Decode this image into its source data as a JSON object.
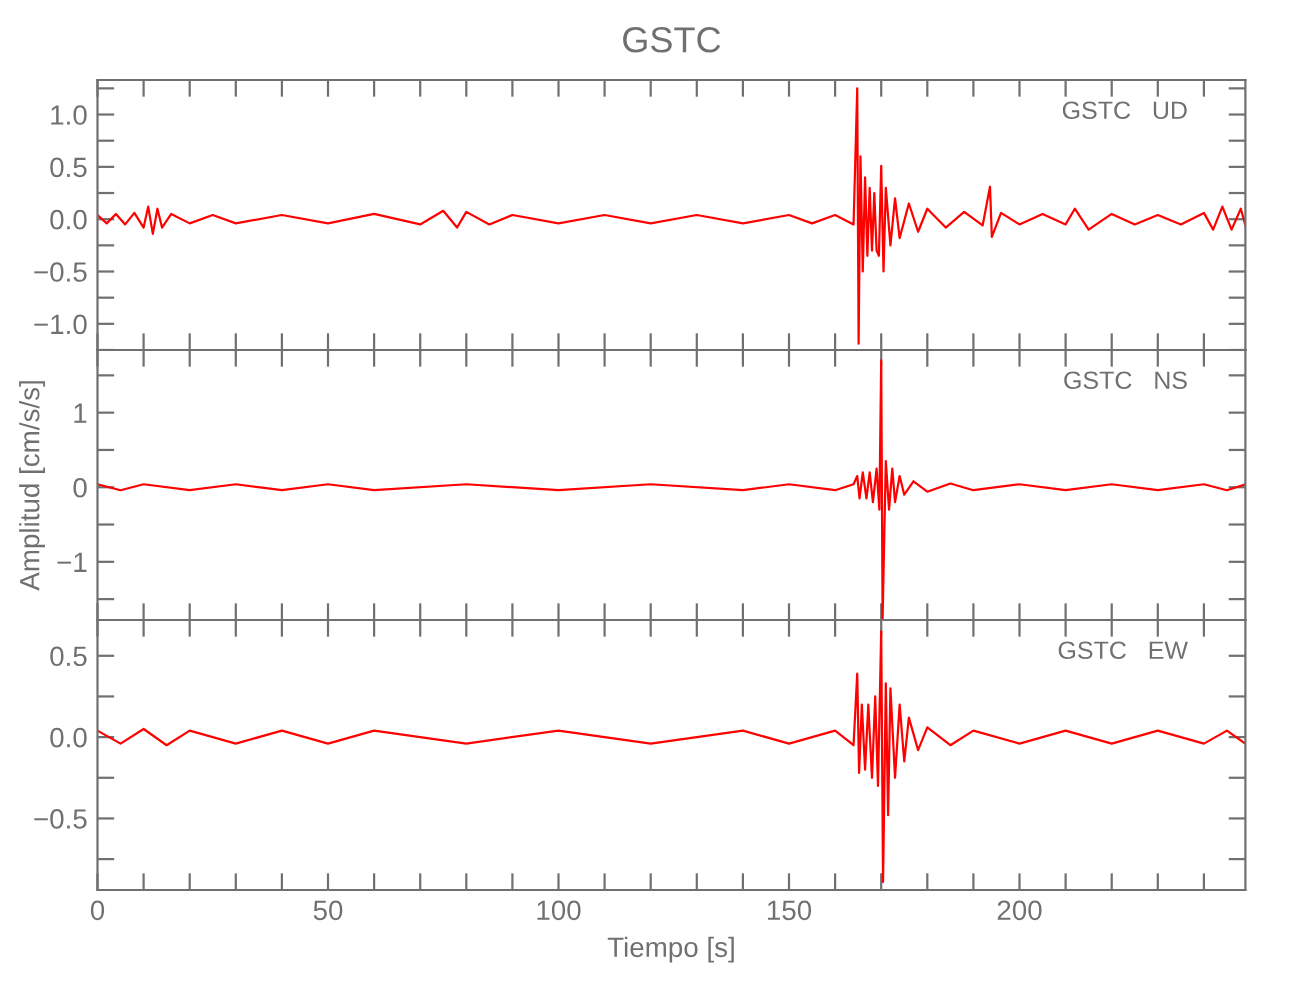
{
  "chart_data": [
    {
      "type": "line",
      "title": "GSTC",
      "annotations": [
        "GSTC   UD"
      ],
      "tick_labels": "y",
      "grid": false,
      "legend": false,
      "xlim": [
        0,
        249
      ],
      "xticks": [
        0,
        {
          "value": 10,
          "label": null
        },
        {
          "value": 20,
          "label": null
        },
        {
          "value": 30,
          "label": null
        },
        {
          "value": 40,
          "label": null
        },
        50,
        {
          "value": 60,
          "label": null
        },
        {
          "value": 70,
          "label": null
        },
        {
          "value": 80,
          "label": null
        },
        {
          "value": 90,
          "label": null
        },
        100,
        {
          "value": 110,
          "label": null
        },
        {
          "value": 120,
          "label": null
        },
        {
          "value": 130,
          "label": null
        },
        {
          "value": 140,
          "label": null
        },
        150,
        {
          "value": 160,
          "label": null
        },
        {
          "value": 170,
          "label": null
        },
        {
          "value": 180,
          "label": null
        },
        {
          "value": 190,
          "label": null
        },
        200,
        {
          "value": 210,
          "label": null
        },
        {
          "value": 220,
          "label": null
        },
        {
          "value": 230,
          "label": null
        },
        {
          "value": 240,
          "label": null
        }
      ],
      "ylim": [
        -1.25,
        1.33
      ],
      "yticks": [
        {
          "value": -1.25,
          "label": null
        },
        {
          "value": -1,
          "label": "−1.0"
        },
        {
          "value": -0.75,
          "label": null
        },
        {
          "value": -0.5,
          "label": "−0.5"
        },
        {
          "value": -0.25,
          "label": null
        },
        {
          "value": 0,
          "label": "0.0"
        },
        {
          "value": 0.25,
          "label": null
        },
        {
          "value": 0.5,
          "label": "0.5"
        },
        {
          "value": 0.75,
          "label": null
        },
        {
          "value": 1,
          "label": "1.0"
        },
        {
          "value": 1.25,
          "label": null
        }
      ],
      "series": [
        {
          "color": "#ff0000",
          "x": [
            0,
            2,
            4,
            6,
            8,
            10,
            11,
            12,
            13,
            14,
            16,
            20,
            25,
            30,
            40,
            50,
            60,
            70,
            75,
            78,
            80,
            85,
            90,
            100,
            110,
            120,
            130,
            140,
            150,
            155,
            160,
            164,
            164.8,
            165.1,
            165.5,
            166,
            166.5,
            167,
            167.5,
            168,
            168.5,
            169,
            169.5,
            170,
            170.5,
            171,
            172,
            173,
            174,
            176,
            178,
            180,
            184,
            188,
            192,
            193.6,
            194,
            196,
            200,
            205,
            210,
            212,
            215,
            220,
            225,
            230,
            235,
            240,
            242,
            244,
            246,
            248,
            249
          ],
          "values": [
            0.04,
            -0.04,
            0.05,
            -0.05,
            0.06,
            -0.08,
            0.12,
            -0.14,
            0.1,
            -0.08,
            0.05,
            -0.04,
            0.04,
            -0.04,
            0.04,
            -0.04,
            0.05,
            -0.05,
            0.08,
            -0.08,
            0.07,
            -0.05,
            0.04,
            -0.04,
            0.04,
            -0.04,
            0.04,
            -0.04,
            0.04,
            -0.04,
            0.04,
            -0.05,
            1.25,
            -1.19,
            0.6,
            -0.5,
            0.4,
            -0.35,
            0.3,
            -0.3,
            0.25,
            -0.3,
            -0.35,
            0.51,
            -0.5,
            0.3,
            -0.25,
            0.2,
            -0.18,
            0.15,
            -0.12,
            0.1,
            -0.08,
            0.07,
            -0.06,
            0.31,
            -0.17,
            0.06,
            -0.05,
            0.05,
            -0.05,
            0.1,
            -0.1,
            0.05,
            -0.05,
            0.04,
            -0.05,
            0.06,
            -0.1,
            0.12,
            -0.1,
            0.1,
            -0.06
          ]
        }
      ]
    },
    {
      "type": "line",
      "ylabel": "Amplitud [cm/s/s]",
      "annotations": [
        "GSTC   NS"
      ],
      "tick_labels": "y",
      "grid": false,
      "legend": false,
      "xlim": [
        0,
        249
      ],
      "xticks": [
        0,
        {
          "value": 10,
          "label": null
        },
        {
          "value": 20,
          "label": null
        },
        {
          "value": 30,
          "label": null
        },
        {
          "value": 40,
          "label": null
        },
        50,
        {
          "value": 60,
          "label": null
        },
        {
          "value": 70,
          "label": null
        },
        {
          "value": 80,
          "label": null
        },
        {
          "value": 90,
          "label": null
        },
        100,
        {
          "value": 110,
          "label": null
        },
        {
          "value": 120,
          "label": null
        },
        {
          "value": 130,
          "label": null
        },
        {
          "value": 140,
          "label": null
        },
        150,
        {
          "value": 160,
          "label": null
        },
        {
          "value": 170,
          "label": null
        },
        {
          "value": 180,
          "label": null
        },
        {
          "value": 190,
          "label": null
        },
        200,
        {
          "value": 210,
          "label": null
        },
        {
          "value": 220,
          "label": null
        },
        {
          "value": 230,
          "label": null
        },
        {
          "value": 240,
          "label": null
        }
      ],
      "ylim": [
        -1.78,
        1.84
      ],
      "yticks": [
        {
          "value": -1.5,
          "label": null
        },
        {
          "value": -1,
          "label": "−1"
        },
        {
          "value": -0.5,
          "label": null
        },
        0,
        {
          "value": 0.5,
          "label": null
        },
        1,
        {
          "value": 1.5,
          "label": null
        }
      ],
      "series": [
        {
          "color": "#ff0000",
          "x": [
            0,
            5,
            10,
            20,
            30,
            40,
            50,
            60,
            80,
            100,
            120,
            140,
            150,
            160,
            164,
            164.8,
            165.3,
            166,
            166.8,
            167.5,
            168.2,
            169,
            169.6,
            170,
            170.3,
            171,
            171.7,
            172.4,
            173,
            174,
            175,
            177,
            180,
            185,
            190,
            200,
            210,
            220,
            230,
            240,
            245,
            249
          ],
          "values": [
            0.04,
            -0.04,
            0.04,
            -0.04,
            0.04,
            -0.04,
            0.04,
            -0.04,
            0.04,
            -0.04,
            0.04,
            -0.04,
            0.04,
            -0.04,
            0.04,
            0.15,
            -0.15,
            0.2,
            -0.15,
            0.2,
            -0.2,
            0.25,
            -0.3,
            1.7,
            -1.76,
            0.35,
            -0.3,
            0.25,
            -0.2,
            0.15,
            -0.1,
            0.08,
            -0.06,
            0.05,
            -0.04,
            0.04,
            -0.04,
            0.04,
            -0.04,
            0.04,
            -0.04,
            0.04
          ]
        }
      ]
    },
    {
      "type": "line",
      "xlabel": "Tiempo [s]",
      "annotations": [
        "GSTC   EW"
      ],
      "grid": false,
      "legend": false,
      "xlim": [
        0,
        249
      ],
      "xticks": [
        0,
        {
          "value": 10,
          "label": null
        },
        {
          "value": 20,
          "label": null
        },
        {
          "value": 30,
          "label": null
        },
        {
          "value": 40,
          "label": null
        },
        50,
        {
          "value": 60,
          "label": null
        },
        {
          "value": 70,
          "label": null
        },
        {
          "value": 80,
          "label": null
        },
        {
          "value": 90,
          "label": null
        },
        100,
        {
          "value": 110,
          "label": null
        },
        {
          "value": 120,
          "label": null
        },
        {
          "value": 130,
          "label": null
        },
        {
          "value": 140,
          "label": null
        },
        150,
        {
          "value": 160,
          "label": null
        },
        {
          "value": 170,
          "label": null
        },
        {
          "value": 180,
          "label": null
        },
        {
          "value": 190,
          "label": null
        },
        200,
        {
          "value": 210,
          "label": null
        },
        {
          "value": 220,
          "label": null
        },
        {
          "value": 230,
          "label": null
        },
        {
          "value": 240,
          "label": null
        }
      ],
      "ylim": [
        -0.94,
        0.72
      ],
      "yticks": [
        {
          "value": -0.75,
          "label": null
        },
        {
          "value": -0.5,
          "label": "−0.5"
        },
        {
          "value": -0.25,
          "label": null
        },
        {
          "value": 0,
          "label": "0.0"
        },
        {
          "value": 0.25,
          "label": null
        },
        {
          "value": 0.5,
          "label": "0.5"
        }
      ],
      "series": [
        {
          "color": "#ff0000",
          "x": [
            0,
            5,
            10,
            15,
            20,
            30,
            40,
            50,
            60,
            80,
            100,
            120,
            140,
            150,
            160,
            164,
            164.8,
            165.2,
            165.8,
            166.5,
            167.2,
            168,
            168.7,
            169.3,
            170,
            170.4,
            171,
            171.5,
            172,
            173,
            174,
            175,
            176,
            178,
            180,
            185,
            190,
            200,
            210,
            220,
            230,
            240,
            245,
            249
          ],
          "values": [
            0.04,
            -0.04,
            0.05,
            -0.05,
            0.04,
            -0.04,
            0.04,
            -0.04,
            0.04,
            -0.04,
            0.04,
            -0.04,
            0.04,
            -0.04,
            0.04,
            -0.05,
            0.39,
            -0.22,
            0.2,
            -0.2,
            0.2,
            -0.25,
            0.25,
            -0.3,
            0.65,
            -0.89,
            0.33,
            -0.48,
            0.3,
            -0.25,
            0.2,
            -0.15,
            0.12,
            -0.08,
            0.06,
            -0.05,
            0.04,
            -0.04,
            0.04,
            -0.04,
            0.04,
            -0.04,
            0.04,
            -0.04
          ]
        }
      ]
    }
  ]
}
